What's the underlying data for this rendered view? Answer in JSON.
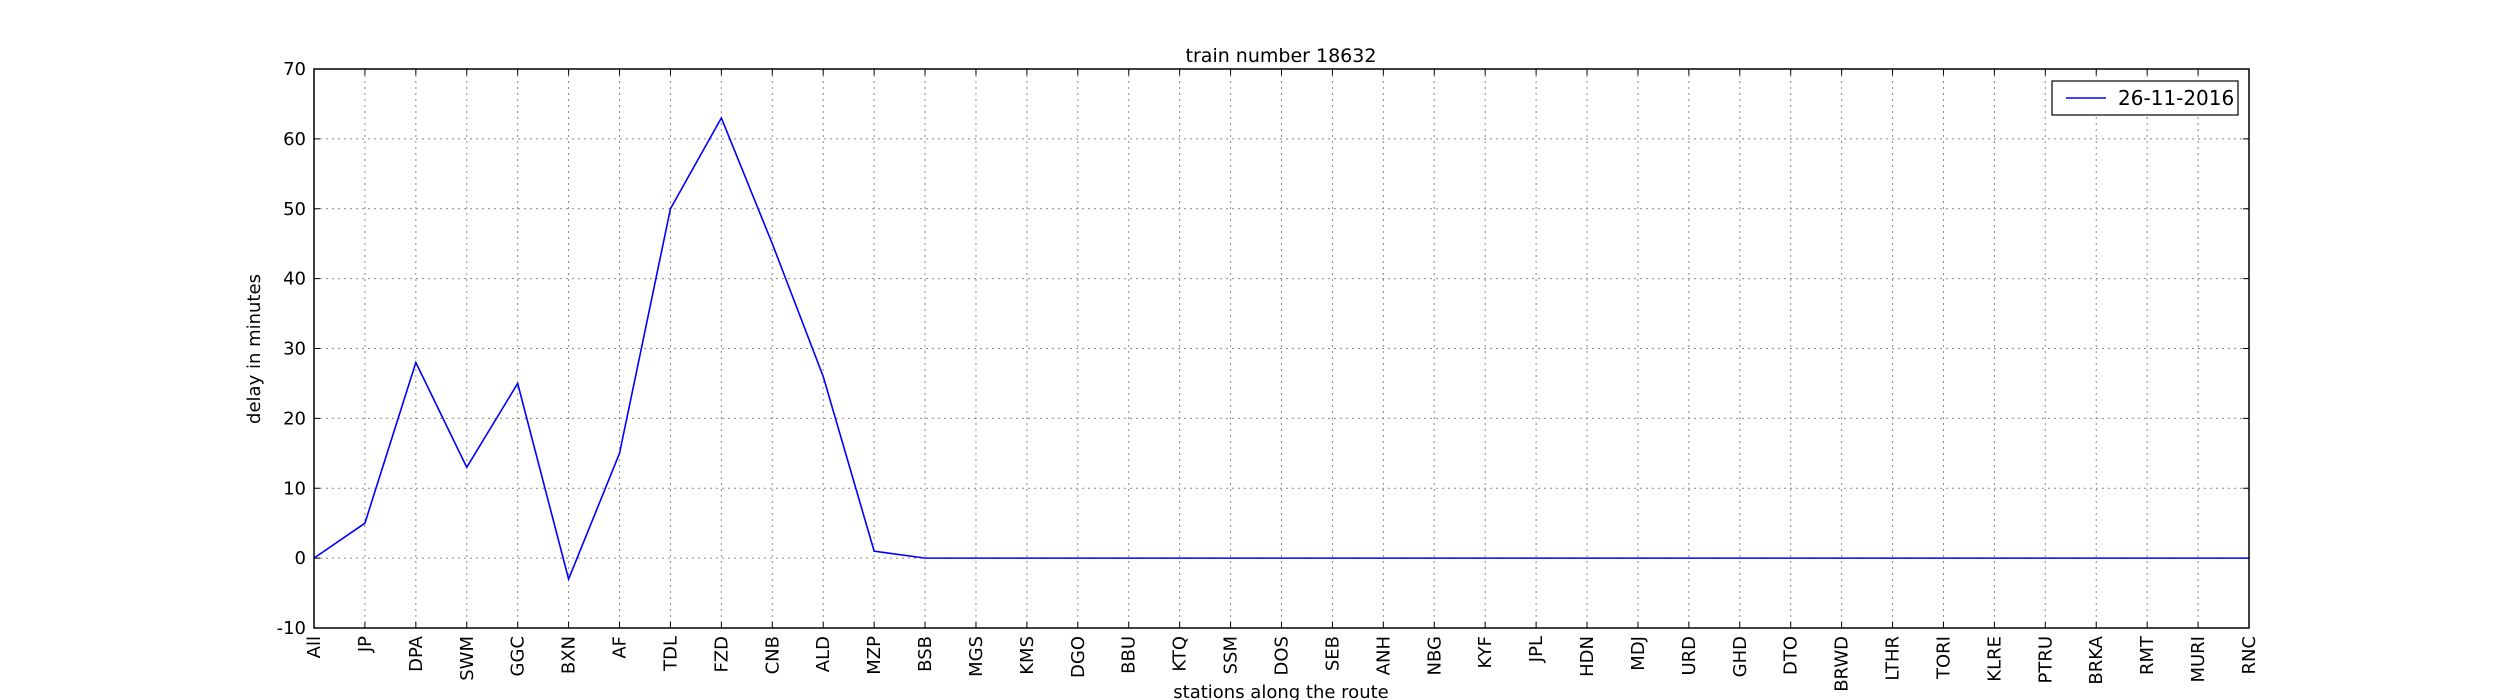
{
  "chart_data": {
    "type": "line",
    "title": "train number 18632",
    "xlabel": "stations along the route",
    "ylabel": "delay in minutes",
    "categories": [
      "All",
      "JP",
      "DPA",
      "SWM",
      "GGC",
      "BXN",
      "AF",
      "TDL",
      "FZD",
      "CNB",
      "ALD",
      "MZP",
      "BSB",
      "MGS",
      "KMS",
      "DGO",
      "BBU",
      "KTQ",
      "SSM",
      "DOS",
      "SEB",
      "ANH",
      "NBG",
      "KYF",
      "JPL",
      "HDN",
      "MDJ",
      "URD",
      "GHD",
      "DTO",
      "BRWD",
      "LTHR",
      "TORI",
      "KLRE",
      "PTRU",
      "BRKA",
      "RMT",
      "MURI",
      "RNC"
    ],
    "series": [
      {
        "name": "26-11-2016",
        "color": "#0000ff",
        "values": [
          0,
          5,
          28,
          13,
          25,
          -3,
          15,
          50,
          63,
          45,
          26,
          1,
          0,
          0,
          0,
          0,
          0,
          0,
          0,
          0,
          0,
          0,
          0,
          0,
          0,
          0,
          0,
          0,
          0,
          0,
          0,
          0,
          0,
          0,
          0,
          0,
          0,
          0,
          0
        ]
      }
    ],
    "ylim": [
      -10,
      70
    ],
    "yticks": [
      -10,
      0,
      10,
      20,
      30,
      40,
      50,
      60,
      70
    ],
    "grid": true,
    "legend": "upper right"
  }
}
